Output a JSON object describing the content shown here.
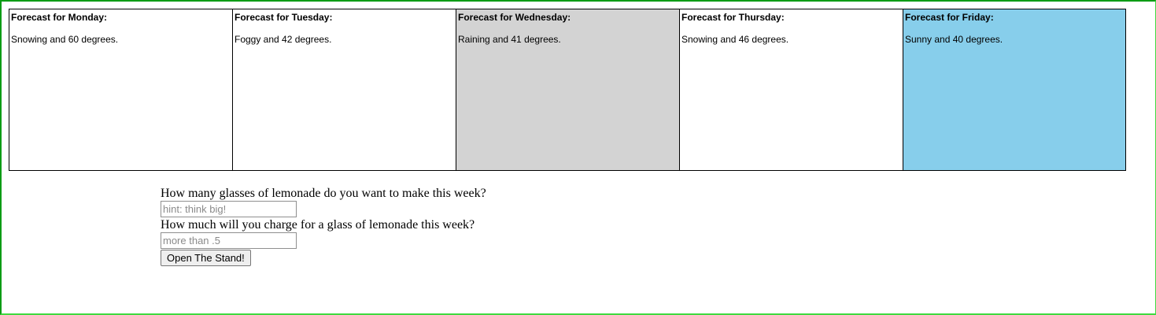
{
  "forecast": {
    "days": [
      {
        "title": "Forecast for Monday:",
        "description": "Snowing and 60 degrees.",
        "bg": "#ffffff"
      },
      {
        "title": "Forecast for Tuesday:",
        "description": "Foggy and 42 degrees.",
        "bg": "#ffffff"
      },
      {
        "title": "Forecast for Wednesday:",
        "description": "Raining and 41 degrees.",
        "bg": "#d3d3d3"
      },
      {
        "title": "Forecast for Thursday:",
        "description": "Snowing and 46 degrees.",
        "bg": "#ffffff"
      },
      {
        "title": "Forecast for Friday:",
        "description": "Sunny and 40 degrees.",
        "bg": "#87ceeb"
      }
    ]
  },
  "form": {
    "glasses_label": "How many glasses of lemonade do you want to make this week?",
    "glasses_placeholder": "hint: think big!",
    "glasses_value": "",
    "price_label": "How much will you charge for a glass of lemonade this week?",
    "price_placeholder": "more than .5",
    "price_value": "",
    "submit_label": "Open The Stand!"
  },
  "colors": {
    "frame_border": "#0a9b14",
    "wednesday_bg": "#d3d3d3",
    "friday_bg": "#87ceeb"
  }
}
